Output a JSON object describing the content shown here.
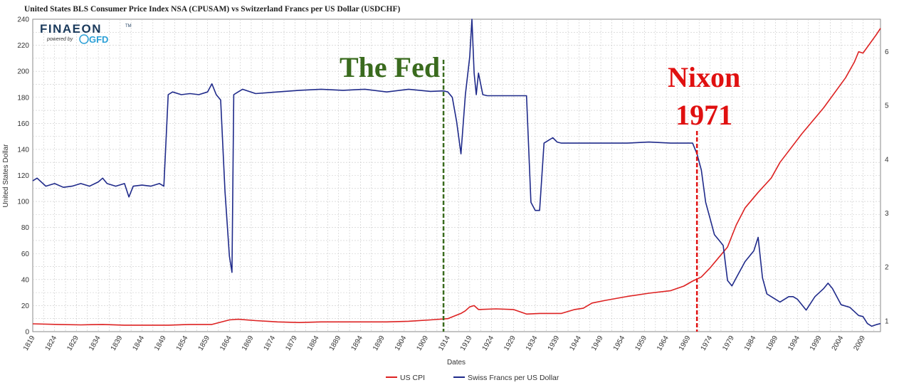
{
  "chart_data": {
    "type": "line",
    "title": "United States BLS Consumer Price Index NSA (CPUSAM)  vs  Switzerland Francs per US Dollar (USDCHF)",
    "xlabel": "Dates",
    "ylabel": "United States Dollar",
    "xlim": [
      1819,
      2013
    ],
    "ylim": [
      0,
      240
    ],
    "y2lim": [
      0.8,
      6.6
    ],
    "x_ticks": [
      1819,
      1824,
      1829,
      1834,
      1839,
      1844,
      1849,
      1854,
      1859,
      1864,
      1869,
      1874,
      1879,
      1884,
      1889,
      1894,
      1899,
      1904,
      1909,
      1914,
      1919,
      1924,
      1929,
      1934,
      1939,
      1944,
      1949,
      1954,
      1959,
      1964,
      1969,
      1974,
      1979,
      1984,
      1989,
      1994,
      1999,
      2004,
      2009
    ],
    "y_ticks": [
      0,
      20,
      40,
      60,
      80,
      100,
      120,
      140,
      160,
      180,
      200,
      220,
      240
    ],
    "y2_ticks": [
      1,
      2,
      3,
      4,
      5,
      6
    ],
    "grid": true,
    "legend_position": "bottom-center",
    "series": [
      {
        "name": "US CPI",
        "axis": "left",
        "color": "#dd2222",
        "x": [
          1819,
          1825,
          1830,
          1835,
          1840,
          1845,
          1850,
          1855,
          1860,
          1864,
          1866,
          1870,
          1875,
          1880,
          1885,
          1890,
          1895,
          1900,
          1905,
          1910,
          1914,
          1917,
          1918,
          1919,
          1920,
          1921,
          1925,
          1929,
          1932,
          1935,
          1940,
          1943,
          1945,
          1947,
          1950,
          1955,
          1960,
          1965,
          1968,
          1970,
          1972,
          1974,
          1976,
          1978,
          1980,
          1982,
          1985,
          1988,
          1990,
          1995,
          2000,
          2005,
          2007,
          2008,
          2009,
          2012,
          2013
        ],
        "values": [
          6,
          5.5,
          5.2,
          5.5,
          5,
          5,
          5,
          5.5,
          5.5,
          9,
          9.5,
          8.5,
          7.5,
          7,
          7.5,
          7.5,
          7.5,
          7.5,
          8,
          9,
          10,
          14,
          16,
          19,
          20,
          17,
          17.5,
          17,
          13.5,
          14,
          14,
          17,
          18,
          22,
          24,
          27,
          29.5,
          31.5,
          35,
          38.8,
          42,
          49,
          57,
          65,
          82,
          95,
          107,
          118,
          130,
          152,
          172,
          195,
          207,
          215,
          214,
          228,
          233
        ]
      },
      {
        "name": "Swiss Francs per US Dollar",
        "axis": "right",
        "color": "#1f2a8a",
        "x": [
          1819,
          1820,
          1822,
          1824,
          1826,
          1828,
          1830,
          1832,
          1834,
          1835,
          1836,
          1838,
          1840,
          1841,
          1842,
          1844,
          1846,
          1848,
          1849,
          1850,
          1851,
          1853,
          1855,
          1857,
          1859,
          1860,
          1861,
          1862,
          1863,
          1864,
          1864.6,
          1865,
          1866,
          1867,
          1870,
          1875,
          1880,
          1885,
          1890,
          1895,
          1900,
          1905,
          1910,
          1913,
          1914,
          1915,
          1916,
          1917,
          1918,
          1919,
          1919.5,
          1920,
          1920.5,
          1921,
          1922,
          1923,
          1925,
          1928,
          1931,
          1932,
          1933,
          1934,
          1935,
          1936,
          1937,
          1938,
          1939,
          1940,
          1945,
          1950,
          1955,
          1960,
          1965,
          1970,
          1971,
          1972,
          1973,
          1974,
          1975,
          1976,
          1977,
          1978,
          1979,
          1980,
          1982,
          1984,
          1985,
          1986,
          1987,
          1988,
          1990,
          1992,
          1993,
          1994,
          1996,
          1998,
          2000,
          2001,
          2002,
          2004,
          2006,
          2008,
          2009,
          2010,
          2011,
          2012,
          2013
        ],
        "values": [
          3.6,
          3.65,
          3.5,
          3.55,
          3.48,
          3.5,
          3.55,
          3.5,
          3.58,
          3.65,
          3.55,
          3.5,
          3.55,
          3.3,
          3.5,
          3.52,
          3.5,
          3.55,
          3.5,
          5.2,
          5.25,
          5.2,
          5.22,
          5.2,
          5.25,
          5.4,
          5.2,
          5.1,
          3.4,
          2.2,
          1.9,
          5.2,
          5.25,
          5.3,
          5.22,
          5.25,
          5.28,
          5.3,
          5.28,
          5.3,
          5.25,
          5.3,
          5.26,
          5.27,
          5.25,
          5.15,
          4.7,
          4.1,
          5.2,
          5.9,
          6.6,
          5.6,
          5.2,
          5.6,
          5.2,
          5.18,
          5.18,
          5.18,
          5.18,
          5.18,
          3.2,
          3.05,
          3.05,
          4.3,
          4.35,
          4.4,
          4.32,
          4.3,
          4.3,
          4.3,
          4.3,
          4.32,
          4.3,
          4.3,
          4.1,
          3.8,
          3.2,
          2.9,
          2.6,
          2.5,
          2.4,
          1.75,
          1.65,
          1.8,
          2.1,
          2.3,
          2.55,
          1.8,
          1.5,
          1.45,
          1.35,
          1.45,
          1.45,
          1.4,
          1.2,
          1.45,
          1.6,
          1.7,
          1.6,
          1.3,
          1.25,
          1.1,
          1.08,
          0.95,
          0.9,
          0.93,
          0.95
        ]
      }
    ],
    "annotations": [
      {
        "text": "The Fed",
        "x": 1913,
        "color": "#3a6b1e",
        "line_style": "dashed"
      },
      {
        "text": "Nixon",
        "x": 1971,
        "color": "#e01010",
        "line_style": "dashed"
      },
      {
        "text": "1971",
        "x": 1971,
        "color": "#e01010"
      }
    ]
  },
  "logo": {
    "brand": "FINAEON",
    "trademark": "TM",
    "powered_by": "powered by",
    "sub_brand": "GFD"
  }
}
